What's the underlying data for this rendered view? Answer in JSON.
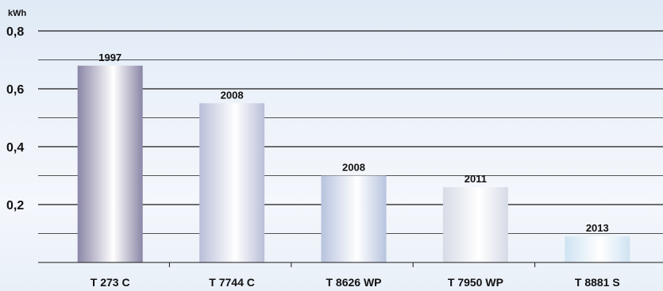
{
  "chart_data": {
    "type": "bar",
    "ylabel": "kWh",
    "ylim": [
      0,
      0.8
    ],
    "yticks": [
      "0,2",
      "0,4",
      "0,6",
      "0,8"
    ],
    "grid": true,
    "categories": [
      "T 273 C",
      "T 7744 C",
      "T 8626 WP",
      "T 7950 WP",
      "T 8881 S"
    ],
    "values": [
      0.68,
      0.55,
      0.3,
      0.26,
      0.09
    ],
    "data_labels": [
      "1997",
      "2008",
      "2008",
      "2011",
      "2013"
    ],
    "colors": {
      "bar1_dark": "#8a86a6",
      "bar2_dark": "#b9bfd8",
      "bar3_dark": "#b7c3de",
      "bar4_dark": "#d6dbe6",
      "bar5_dark": "#cfe3f2",
      "grid": "#1a1a1a"
    }
  }
}
